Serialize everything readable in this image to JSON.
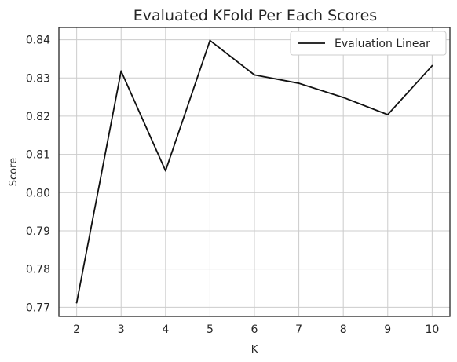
{
  "chart_data": {
    "type": "line",
    "title": "Evaluated KFold Per Each Scores",
    "xlabel": "K",
    "ylabel": "Score",
    "x": [
      2,
      3,
      4,
      5,
      6,
      7,
      8,
      9,
      10
    ],
    "xticks": [
      "2",
      "3",
      "4",
      "5",
      "6",
      "7",
      "8",
      "9",
      "10"
    ],
    "yticks": [
      "0.77",
      "0.78",
      "0.79",
      "0.80",
      "0.81",
      "0.82",
      "0.83",
      "0.84"
    ],
    "xlim": [
      1.6,
      10.4
    ],
    "ylim": [
      0.7676,
      0.8432
    ],
    "grid": true,
    "legend_position": "top-right",
    "series": [
      {
        "name": "Evaluation Linear",
        "color": "#111111",
        "values": [
          0.7712,
          0.8318,
          0.8057,
          0.8398,
          0.8308,
          0.8286,
          0.8249,
          0.8204,
          0.8332
        ]
      }
    ]
  }
}
